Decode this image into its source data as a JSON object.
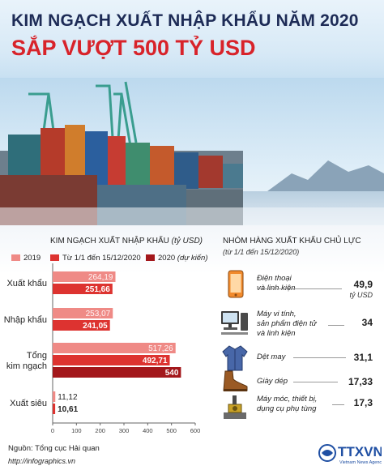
{
  "title_line1": "KIM NGẠCH XUẤT NHẬP KHẨU NĂM 2020",
  "title_line2": "SẮP VƯỢT 500 TỶ USD",
  "chart_title": "KIM NGẠCH XUẤT NHẬP KHẨU",
  "chart_unit": "(tỷ USD)",
  "legend": [
    {
      "label": "2019",
      "label_italic": "",
      "color": "#ef8a86"
    },
    {
      "label": "Từ 1/1 đến 15/12/2020",
      "label_italic": "",
      "color": "#dd3330"
    },
    {
      "label": "2020",
      "label_italic": "(dự kiến)",
      "color": "#a3171b"
    }
  ],
  "chart_data": {
    "type": "bar",
    "orientation": "horizontal",
    "categories": [
      "Xuất khẩu",
      "Nhập khẩu",
      "Tổng kim ngạch",
      "Xuất siêu"
    ],
    "series": [
      {
        "name": "2019",
        "values": [
          264.19,
          253.07,
          517.26,
          11.12
        ],
        "labels": [
          "264,19",
          "253,07",
          "517,26",
          "11,12"
        ],
        "color": "#ef8a86"
      },
      {
        "name": "Từ 1/1 đến 15/12/2020",
        "values": [
          251.66,
          241.05,
          492.71,
          10.61
        ],
        "labels": [
          "251,66",
          "241,05",
          "492,71",
          "10,61"
        ],
        "color": "#dd3330"
      },
      {
        "name": "2020 (dự kiến)",
        "values": [
          null,
          null,
          540,
          null
        ],
        "labels": [
          "",
          "",
          "540",
          ""
        ],
        "color": "#a3171b"
      }
    ],
    "xticks": [
      "0",
      "100",
      "200",
      "300",
      "400",
      "500",
      "600"
    ],
    "xlim": [
      0,
      600
    ],
    "grid": false
  },
  "source": "Nguồn: Tổng cục Hải quan",
  "website": "http://infographics.vn",
  "panel": {
    "title": "NHÓM HÀNG XUẤT KHẨU CHỦ LỰC",
    "subtitle": "(từ 1/1 đến 15/12/2020)",
    "items": [
      {
        "icon": "phone-icon",
        "label": [
          "Điện thoại",
          "và linh kiện"
        ],
        "value": "49,9",
        "unit": "tỷ USD"
      },
      {
        "icon": "computer-icon",
        "label": [
          "Máy vi tính,",
          "sản phẩm điện tử",
          "và linh kiện"
        ],
        "value": "34",
        "unit": ""
      },
      {
        "icon": "jacket-icon",
        "label": [
          "Dệt may"
        ],
        "value": "31,1",
        "unit": ""
      },
      {
        "icon": "shoe-icon",
        "label": [
          "Giày dép"
        ],
        "value": "17,33",
        "unit": ""
      },
      {
        "icon": "machine-icon",
        "label": [
          "Máy móc, thiết bị,",
          "dụng cụ phụ tùng"
        ],
        "value": "17,3",
        "unit": ""
      }
    ]
  },
  "logo": {
    "text": "TTXVN",
    "subtext": "Vietnam News Agency",
    "color": "#1f4fa3"
  }
}
